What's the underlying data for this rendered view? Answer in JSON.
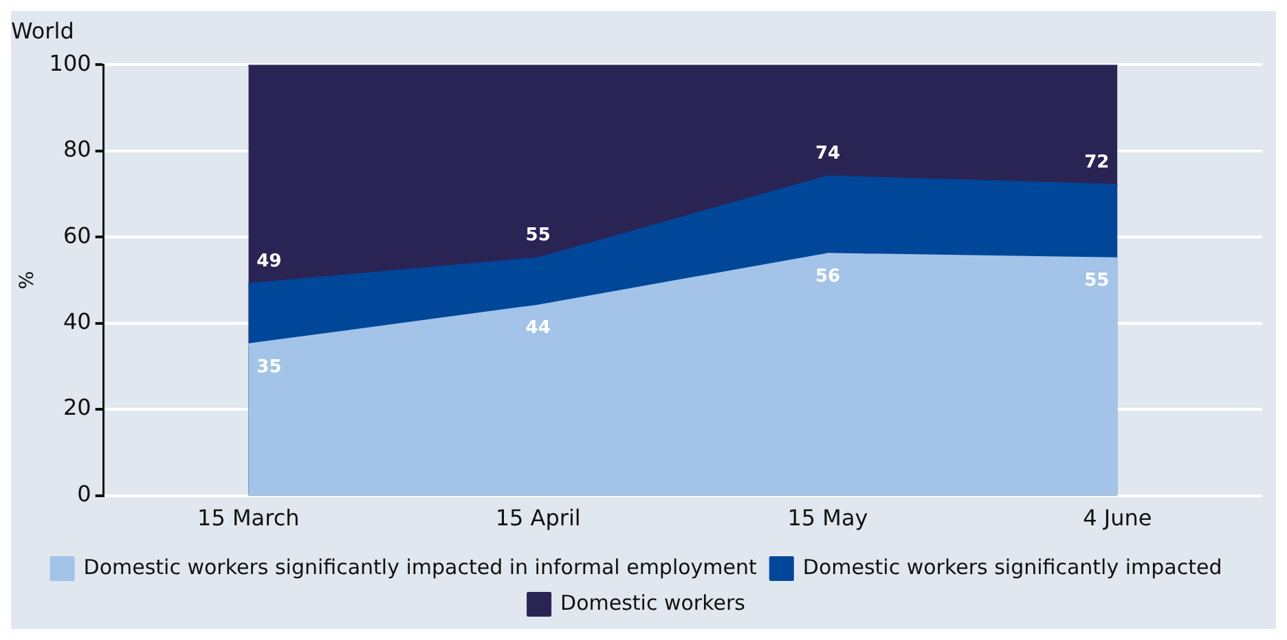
{
  "chart_data": {
    "type": "area",
    "title": "World",
    "ylabel": "%",
    "categories": [
      "15 March",
      "15 April",
      "15 May",
      "4 June"
    ],
    "series": [
      {
        "name": "Domestic workers significantly impacted in informal employment",
        "color": "#a3c4e8",
        "values": [
          35,
          44,
          56,
          55
        ],
        "value_labels": [
          "35",
          "44",
          "56",
          "55"
        ]
      },
      {
        "name": "Domestic workers significantly impacted",
        "color": "#00479a",
        "values": [
          49,
          55,
          74,
          72
        ],
        "value_labels": [
          "49",
          "55",
          "74",
          "72"
        ]
      },
      {
        "name": "Domestic workers",
        "color": "#2a2455",
        "values": [
          100,
          100,
          100,
          100
        ]
      }
    ],
    "ylim": [
      0,
      100
    ],
    "yticks": [
      0,
      20,
      40,
      60,
      80,
      100
    ],
    "grid": "y",
    "legend": "bottom"
  }
}
